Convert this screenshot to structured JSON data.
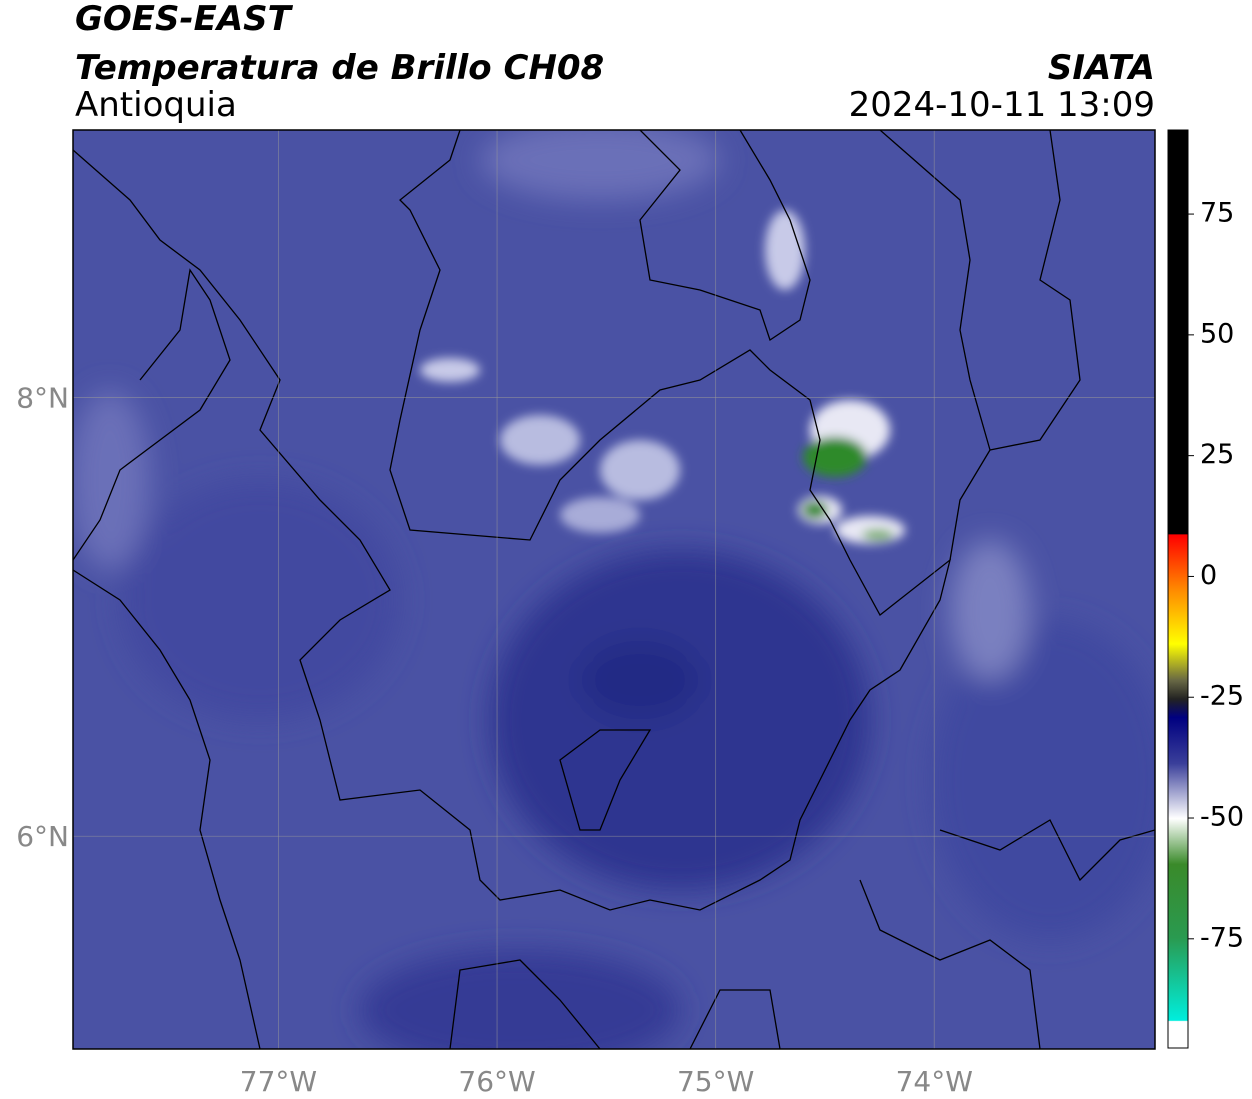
{
  "map": {
    "product": "GOES-EAST",
    "title": "Temperatura de Brillo CH08",
    "region": "Antioquia",
    "agency": "SIATA",
    "datetime": "2024-10-11 13:09",
    "xlim": [
      -77.94,
      -72.99
    ],
    "ylim": [
      5.03,
      9.22
    ],
    "lon_ticks": [
      {
        "value": -77,
        "label": "77°W"
      },
      {
        "value": -76,
        "label": "76°W"
      },
      {
        "value": -75,
        "label": "75°W"
      },
      {
        "value": -74,
        "label": "74°W"
      }
    ],
    "lat_ticks": [
      {
        "value": 8,
        "label": "8°N"
      },
      {
        "value": 6,
        "label": "6°N"
      }
    ],
    "colorbar": {
      "lim": [
        -97.6,
        92.4
      ],
      "ticks": [
        75,
        50,
        25,
        0,
        -25,
        -50,
        -75
      ]
    }
  }
}
